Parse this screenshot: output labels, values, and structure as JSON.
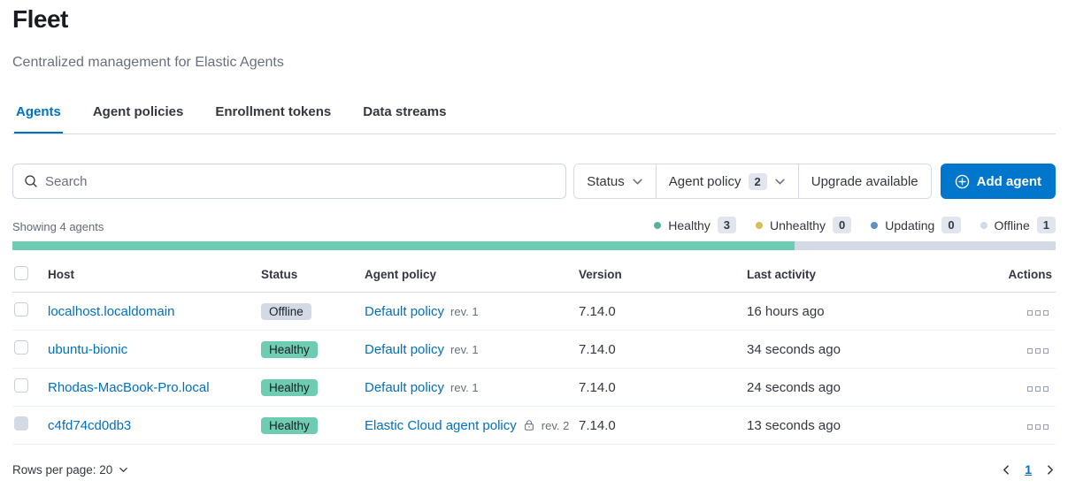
{
  "page": {
    "title": "Fleet",
    "subtitle": "Centralized management for Elastic Agents"
  },
  "tabs": [
    {
      "label": "Agents",
      "active": true
    },
    {
      "label": "Agent policies",
      "active": false
    },
    {
      "label": "Enrollment tokens",
      "active": false
    },
    {
      "label": "Data streams",
      "active": false
    }
  ],
  "toolbar": {
    "search_placeholder": "Search",
    "filters": [
      {
        "label": "Status",
        "count": null,
        "has_arrow": true
      },
      {
        "label": "Agent policy",
        "count": "2",
        "has_arrow": true
      },
      {
        "label": "Upgrade available",
        "count": null,
        "has_arrow": false
      }
    ],
    "add_agent_label": "Add agent"
  },
  "summary": {
    "showing": "Showing 4 agents",
    "legend": [
      {
        "label": "Healthy",
        "count": "3",
        "color": "#54B399"
      },
      {
        "label": "Unhealthy",
        "count": "0",
        "color": "#D6BF57"
      },
      {
        "label": "Updating",
        "count": "0",
        "color": "#6092C0"
      },
      {
        "label": "Offline",
        "count": "1",
        "color": "#D3DAE6"
      }
    ],
    "health_bar": {
      "healthy_percent": 75,
      "healthy_color": "#6DCCB1",
      "remainder_color": "#D3DAE6"
    }
  },
  "table": {
    "columns": [
      "Host",
      "Status",
      "Agent policy",
      "Version",
      "Last activity",
      "Actions"
    ],
    "rows": [
      {
        "host": "localhost.localdomain",
        "status": "Offline",
        "status_kind": "offline",
        "policy": "Default policy",
        "rev": "rev. 1",
        "locked": false,
        "version": "7.14.0",
        "last_activity": "16 hours ago",
        "checkbox_disabled": false
      },
      {
        "host": "ubuntu-bionic",
        "status": "Healthy",
        "status_kind": "healthy",
        "policy": "Default policy",
        "rev": "rev. 1",
        "locked": false,
        "version": "7.14.0",
        "last_activity": "34 seconds ago",
        "checkbox_disabled": false
      },
      {
        "host": "Rhodas-MacBook-Pro.local",
        "status": "Healthy",
        "status_kind": "healthy",
        "policy": "Default policy",
        "rev": "rev. 1",
        "locked": false,
        "version": "7.14.0",
        "last_activity": "24 seconds ago",
        "checkbox_disabled": false
      },
      {
        "host": "c4fd74cd0db3",
        "status": "Healthy",
        "status_kind": "healthy",
        "policy": "Elastic Cloud agent policy",
        "rev": "rev. 2",
        "locked": true,
        "version": "7.14.0",
        "last_activity": "13 seconds ago",
        "checkbox_disabled": true
      }
    ]
  },
  "pagination": {
    "rows_per_page_label": "Rows per page: 20",
    "current_page": "1"
  },
  "colors": {
    "primary": "#0077CC",
    "link": "#0071C2",
    "healthy_badge": "#6DCCB1",
    "offline_badge": "#D3DAE6",
    "border": "#D3DAE6"
  }
}
